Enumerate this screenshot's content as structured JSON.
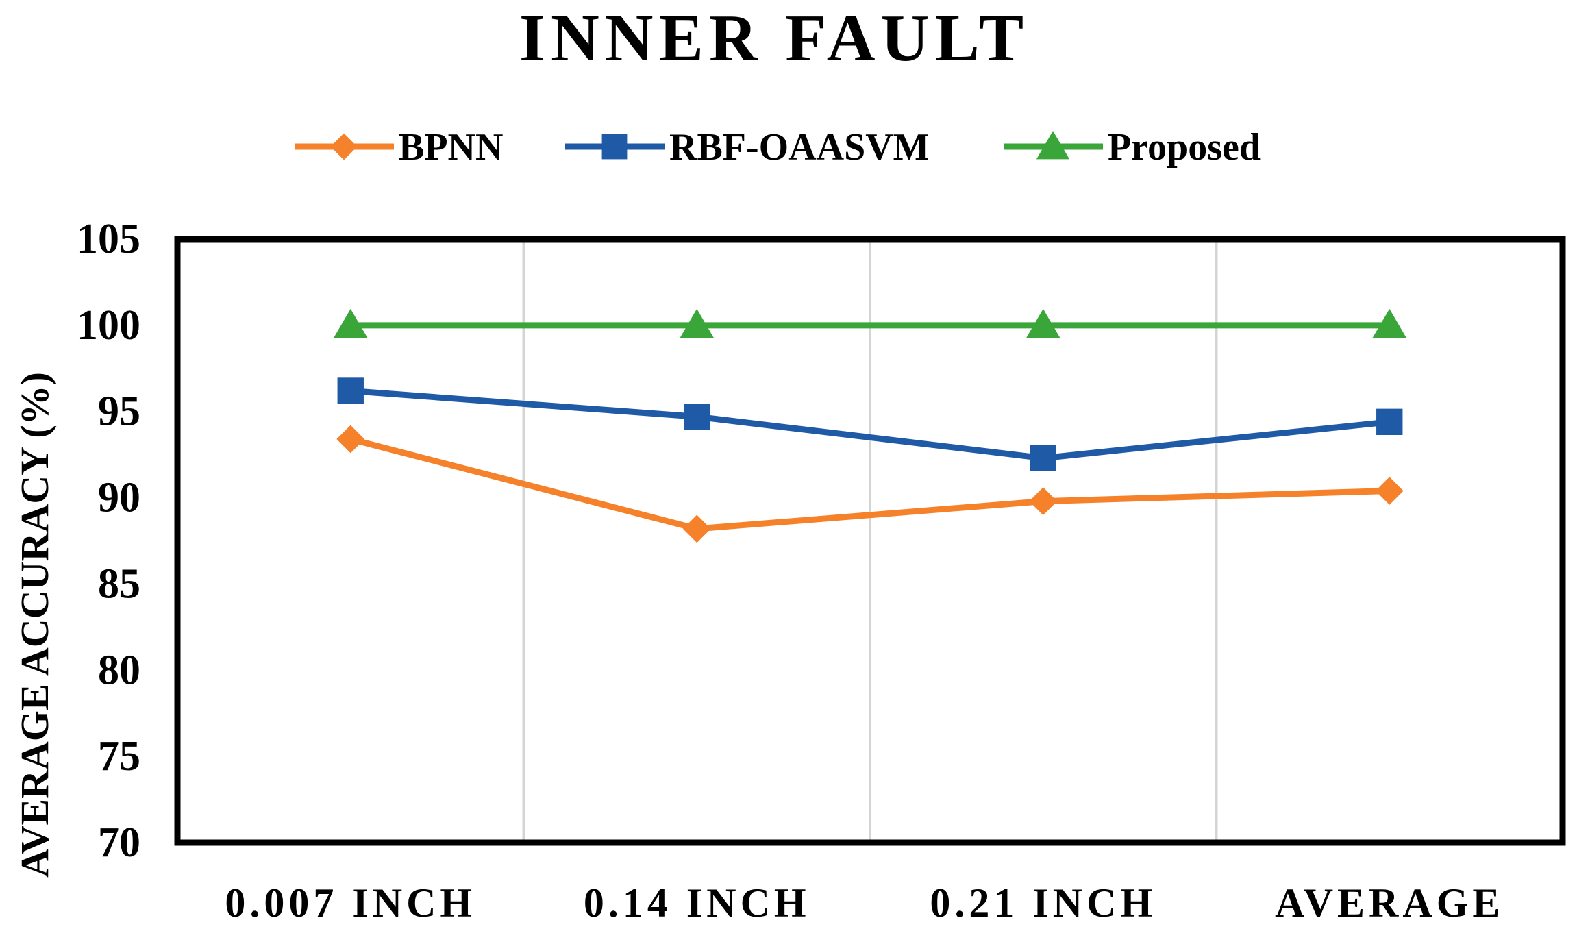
{
  "chart_data": {
    "type": "line",
    "title": "INNER FAULT",
    "xlabel": "",
    "ylabel": "AVERAGE ACCURACY (%)",
    "categories": [
      "0.007 INCH",
      "0.14 INCH",
      "0.21 INCH",
      "AVERAGE"
    ],
    "ylim": [
      70,
      105
    ],
    "yticks": [
      70,
      75,
      80,
      85,
      90,
      95,
      100,
      105
    ],
    "grid": "vertical",
    "legend_position": "top",
    "series": [
      {
        "name": "BPNN",
        "values": [
          93.4,
          88.2,
          89.8,
          90.4
        ],
        "color": "#f5822a",
        "marker": "diamond"
      },
      {
        "name": "RBF-OAASVM",
        "values": [
          96.2,
          94.7,
          92.3,
          94.4
        ],
        "color": "#1f5aa6",
        "marker": "square"
      },
      {
        "name": "Proposed",
        "values": [
          100,
          100,
          100,
          100
        ],
        "color": "#3aa63a",
        "marker": "triangle"
      }
    ]
  }
}
